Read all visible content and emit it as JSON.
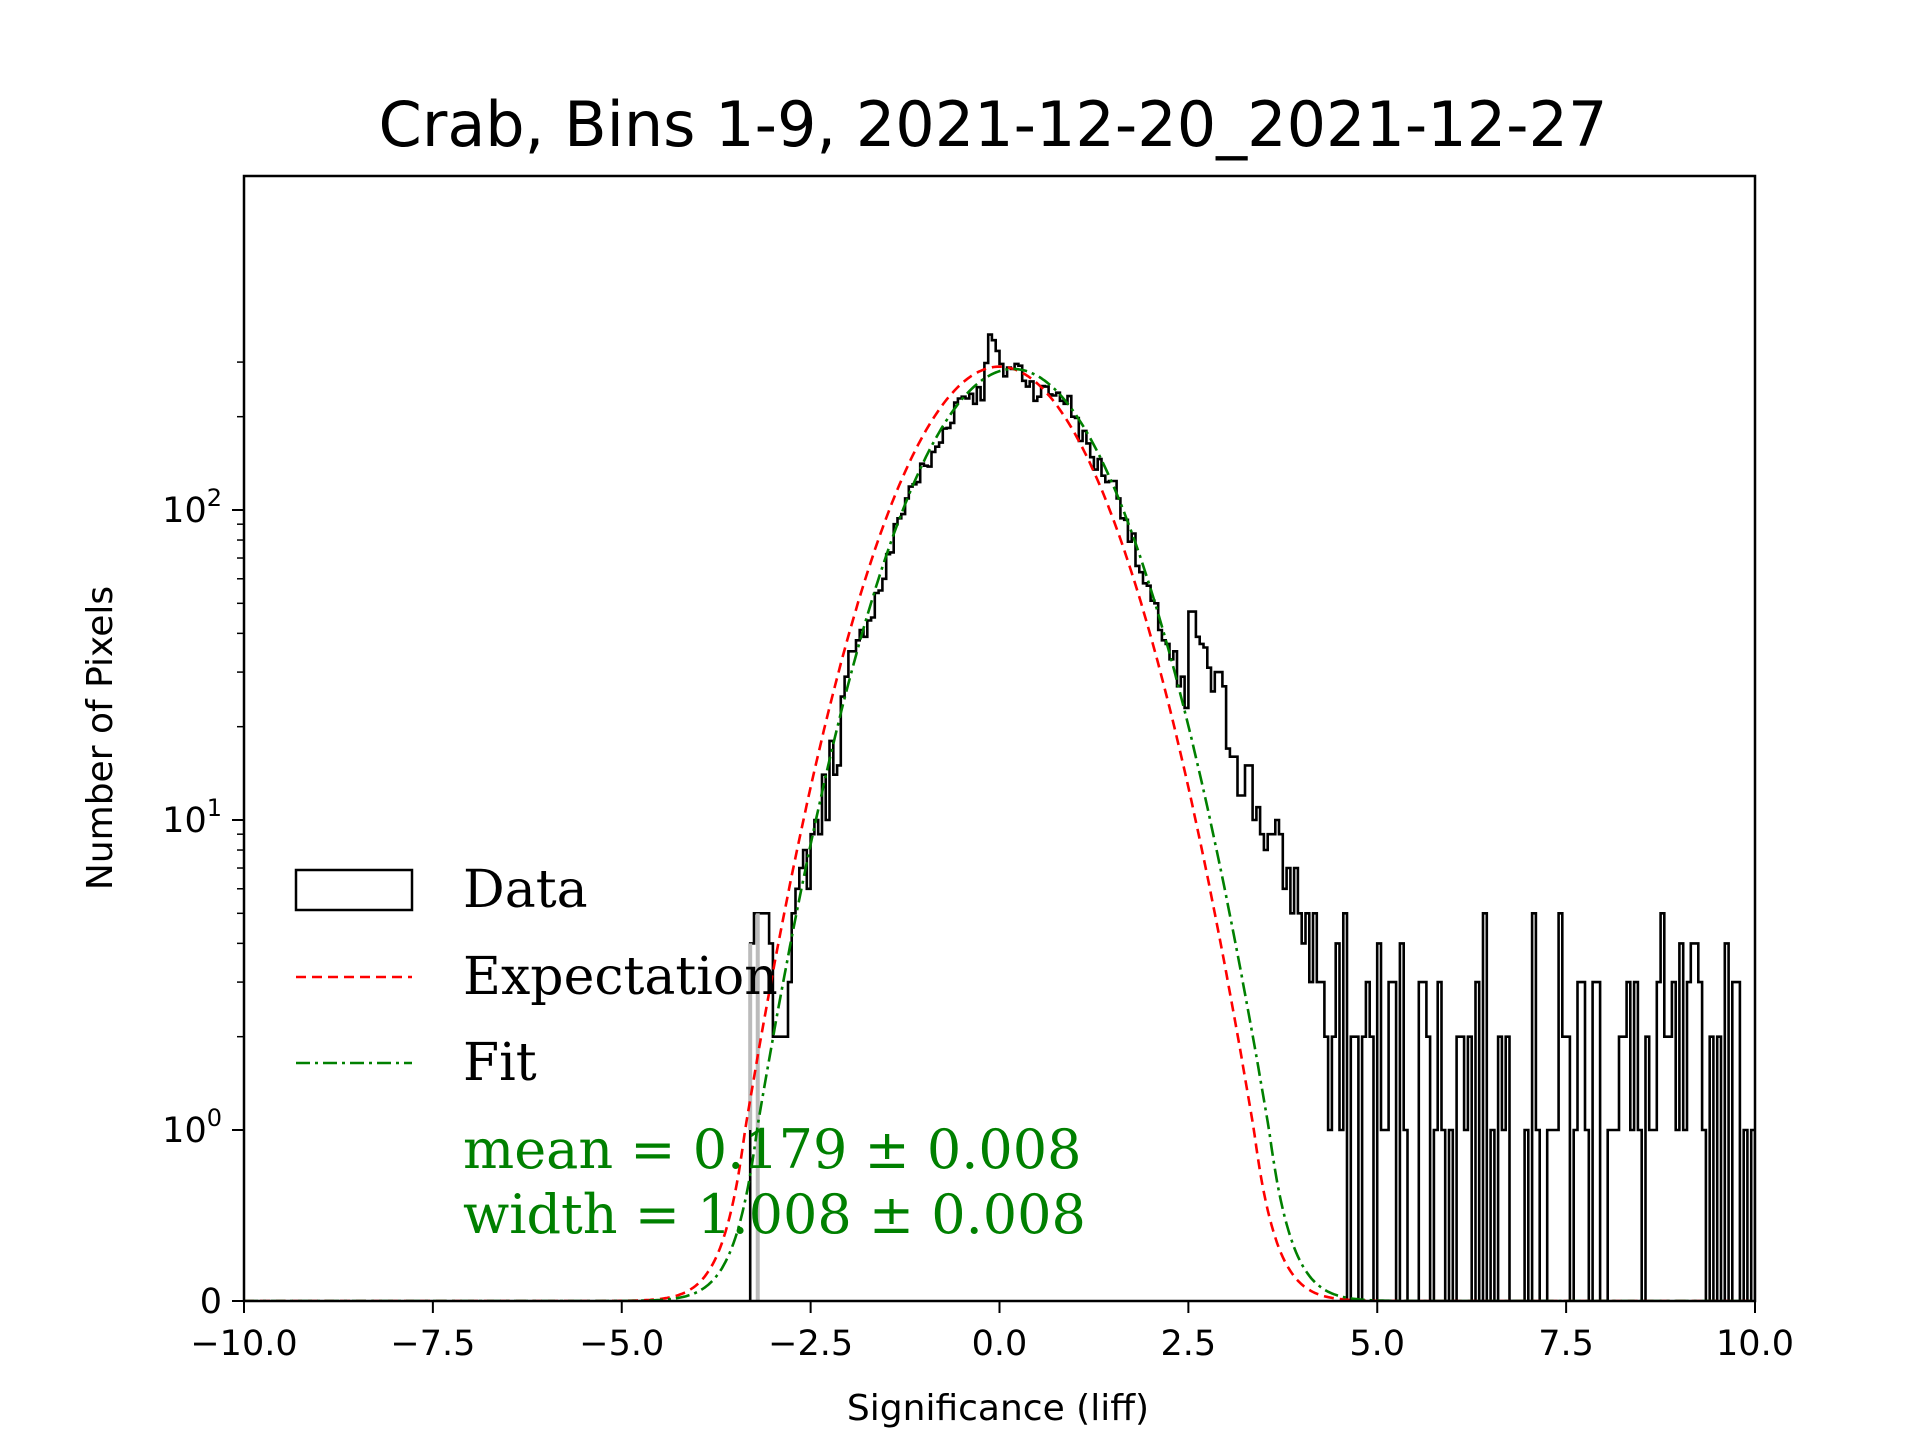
{
  "chart_data": {
    "type": "histogram",
    "title": "Crab, Bins 1-9, 2021-12-20_2021-12-27",
    "xlabel": "Significance (liff)",
    "ylabel": "Number of Pixels",
    "xlim": [
      -10.0,
      10.0
    ],
    "yscale": "symlog",
    "x_ticks": [
      "−10.0",
      "−7.5",
      "−5.0",
      "−2.5",
      "0.0",
      "2.5",
      "5.0",
      "7.5",
      "10.0"
    ],
    "x_tick_values": [
      -10,
      -7.5,
      -5,
      -2.5,
      0,
      2.5,
      5,
      7.5,
      10
    ],
    "y_ticks": [
      {
        "value": 0,
        "base": "0",
        "exp": ""
      },
      {
        "value": 1,
        "base": "10",
        "exp": "0"
      },
      {
        "value": 10,
        "base": "10",
        "exp": "1"
      },
      {
        "value": 100,
        "base": "10",
        "exp": "2"
      }
    ],
    "legend": {
      "position": "lower-left",
      "entries": [
        {
          "label": "Data",
          "style": "box"
        },
        {
          "label": "Expectation",
          "style": "dashed",
          "color": "#ff0000"
        },
        {
          "label": "Fit",
          "style": "dashdot",
          "color": "#008000"
        }
      ]
    },
    "annotations": [
      {
        "text": "mean = 0.179 ± 0.008",
        "color": "#008000"
      },
      {
        "text": "width = 1.008 ± 0.008",
        "color": "#008000"
      }
    ],
    "series": [
      {
        "name": "Expectation",
        "model": "gaussian",
        "amplitude": 290,
        "mean": 0.0,
        "sigma": 1.0,
        "color": "#ff0000"
      },
      {
        "name": "Fit",
        "model": "gaussian",
        "amplitude": 285,
        "mean": 0.179,
        "sigma": 1.008,
        "color": "#008000"
      },
      {
        "name": "Data",
        "model": "histogram",
        "color": "#000000",
        "bin_range": [
          -3.3,
          10.0
        ],
        "approx_peak": 360,
        "approx_peak_x": -0.1,
        "tail": "excess above Gaussian for x > 2.5, scattered counts of 1-5 up to x = 10"
      }
    ]
  }
}
